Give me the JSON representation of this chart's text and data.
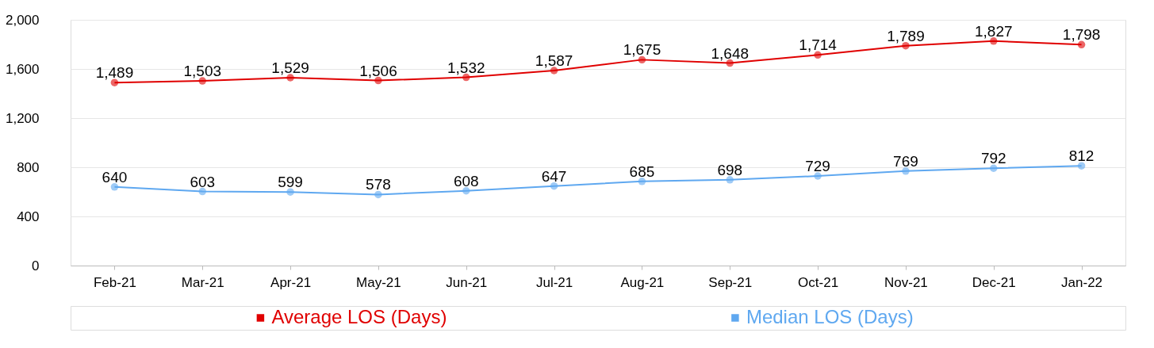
{
  "chart_data": {
    "type": "line",
    "categories": [
      "Feb-21",
      "Mar-21",
      "Apr-21",
      "May-21",
      "Jun-21",
      "Jul-21",
      "Aug-21",
      "Sep-21",
      "Oct-21",
      "Nov-21",
      "Dec-21",
      "Jan-22"
    ],
    "series": [
      {
        "name": "Average LOS (Days)",
        "color": "#e00000",
        "values": [
          1489,
          1503,
          1529,
          1506,
          1532,
          1587,
          1675,
          1648,
          1714,
          1789,
          1827,
          1798
        ],
        "value_labels": [
          "1,489",
          "1,503",
          "1,529",
          "1,506",
          "1,532",
          "1,587",
          "1,675",
          "1,648",
          "1,714",
          "1,789",
          "1,827",
          "1,798"
        ]
      },
      {
        "name": "Median LOS (Days)",
        "color": "#5fa8f0",
        "values": [
          640,
          603,
          599,
          578,
          608,
          647,
          685,
          698,
          729,
          769,
          792,
          812
        ],
        "value_labels": [
          "640",
          "603",
          "599",
          "578",
          "608",
          "647",
          "685",
          "698",
          "729",
          "769",
          "792",
          "812"
        ]
      }
    ],
    "ylim": [
      0,
      2000
    ],
    "yticks": [
      0,
      400,
      800,
      {
        "value": 1200,
        "label": "1,200"
      },
      {
        "value": 1600,
        "label": "1,600"
      },
      {
        "value": 2000,
        "label": "2,000"
      }
    ],
    "grid": "y",
    "legend": "bottom",
    "marker": "circle",
    "line_style": "solid"
  }
}
